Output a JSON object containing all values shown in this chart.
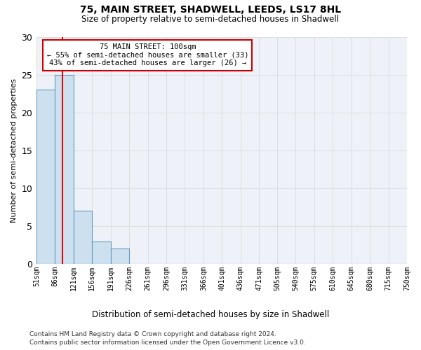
{
  "title": "75, MAIN STREET, SHADWELL, LEEDS, LS17 8HL",
  "subtitle": "Size of property relative to semi-detached houses in Shadwell",
  "xlabel": "Distribution of semi-detached houses by size in Shadwell",
  "ylabel": "Number of semi-detached properties",
  "footnote1": "Contains HM Land Registry data © Crown copyright and database right 2024.",
  "footnote2": "Contains public sector information licensed under the Open Government Licence v3.0.",
  "bin_edges": [
    51,
    86,
    121,
    156,
    191,
    226,
    261,
    296,
    331,
    366,
    401,
    436,
    471,
    505,
    540,
    575,
    610,
    645,
    680,
    715,
    750
  ],
  "bar_heights": [
    23,
    25,
    7,
    3,
    2,
    0,
    0,
    0,
    0,
    0,
    0,
    0,
    0,
    0,
    0,
    0,
    0,
    0,
    0,
    0
  ],
  "bar_color": "#cce0f0",
  "bar_edge_color": "#6699bb",
  "grid_color": "#dddddd",
  "bg_color": "#eef2f8",
  "red_line_x": 100,
  "ylim": [
    0,
    30
  ],
  "yticks": [
    0,
    5,
    10,
    15,
    20,
    25,
    30
  ],
  "annotation_title": "75 MAIN STREET: 100sqm",
  "annotation_line1": "← 55% of semi-detached houses are smaller (33)",
  "annotation_line2": "43% of semi-detached houses are larger (26) →",
  "annotation_box_color": "#ffffff",
  "annotation_border_color": "#cc0000"
}
